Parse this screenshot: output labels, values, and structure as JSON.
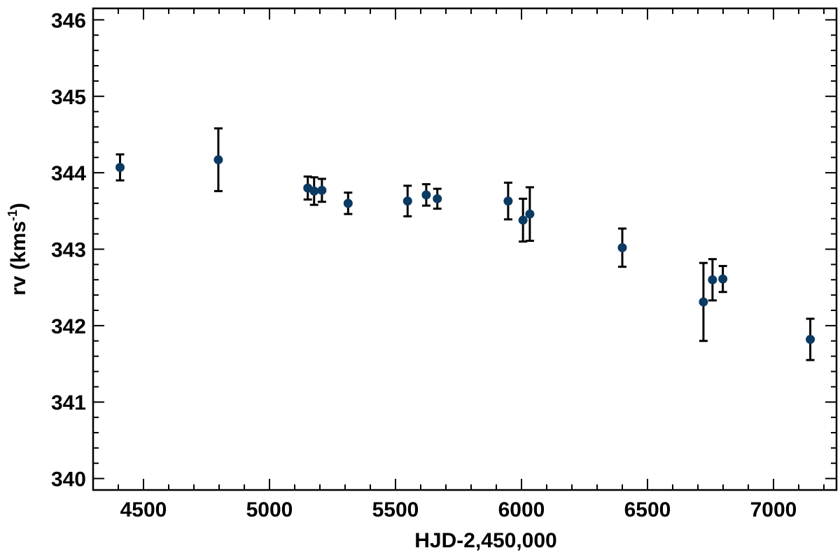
{
  "chart_data": {
    "type": "scatter",
    "title": "",
    "xlabel": "HJD-2,450,000",
    "ylabel_main": "rv (kms",
    "ylabel_sup": "-1",
    "ylabel_close": ")",
    "xlim": [
      4300,
      7250
    ],
    "ylim": [
      339.85,
      346.15
    ],
    "xticks": [
      4500,
      5000,
      5500,
      6000,
      6500,
      7000
    ],
    "yticks": [
      340,
      341,
      342,
      343,
      344,
      345,
      346
    ],
    "xtick_labels": [
      "4500",
      "5000",
      "5500",
      "6000",
      "6500",
      "7000"
    ],
    "ytick_labels": [
      "340",
      "341",
      "342",
      "343",
      "344",
      "345",
      "346"
    ],
    "x_minor_step": 100,
    "y_minor_step": 0.2,
    "marker_color": "#0b3a63",
    "errorbar_color": "#000000",
    "series": [
      {
        "points": [
          {
            "x": 4407,
            "y": 344.07,
            "err": 0.17
          },
          {
            "x": 4797,
            "y": 344.17,
            "err": 0.41
          },
          {
            "x": 5152,
            "y": 343.8,
            "err": 0.15
          },
          {
            "x": 5177,
            "y": 343.76,
            "err": 0.18
          },
          {
            "x": 5208,
            "y": 343.77,
            "err": 0.15
          },
          {
            "x": 5312,
            "y": 343.6,
            "err": 0.14
          },
          {
            "x": 5548,
            "y": 343.63,
            "err": 0.2
          },
          {
            "x": 5622,
            "y": 343.71,
            "err": 0.14
          },
          {
            "x": 5666,
            "y": 343.66,
            "err": 0.13
          },
          {
            "x": 5947,
            "y": 343.63,
            "err": 0.24
          },
          {
            "x": 6006,
            "y": 343.38,
            "err": 0.28
          },
          {
            "x": 6033,
            "y": 343.46,
            "err": 0.35
          },
          {
            "x": 6400,
            "y": 343.02,
            "err": 0.25
          },
          {
            "x": 6722,
            "y": 342.31,
            "err": 0.51
          },
          {
            "x": 6758,
            "y": 342.6,
            "err": 0.27
          },
          {
            "x": 6799,
            "y": 342.61,
            "err": 0.17
          },
          {
            "x": 7146,
            "y": 341.82,
            "err": 0.27
          }
        ]
      }
    ]
  }
}
